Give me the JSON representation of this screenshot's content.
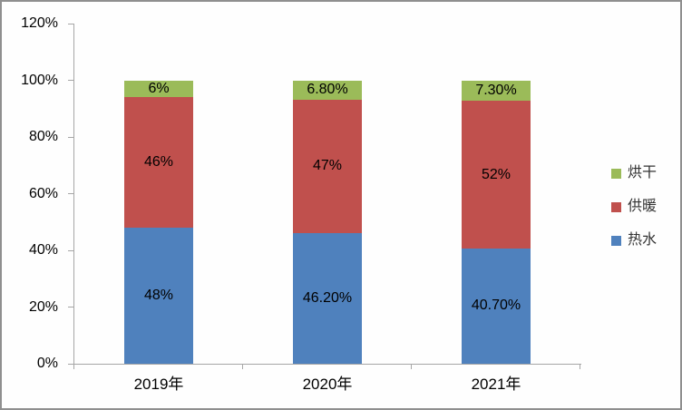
{
  "window": {
    "background": "#fefefe",
    "border_color": "#8f8f8f"
  },
  "chart_data": {
    "type": "bar",
    "subtype": "stacked-100-percent",
    "title": "",
    "categories": [
      "2019年",
      "2020年",
      "2021年"
    ],
    "series": [
      {
        "id": "hot-water",
        "name": "热水",
        "color": "#4f81bd",
        "values": [
          48,
          46.2,
          40.7
        ],
        "labels": [
          "48%",
          "46.20%",
          "40.70%"
        ]
      },
      {
        "id": "heating",
        "name": "供暖",
        "color": "#c0504d",
        "values": [
          46,
          47,
          52
        ],
        "labels": [
          "46%",
          "47%",
          "52%"
        ]
      },
      {
        "id": "drying",
        "name": "烘干",
        "color": "#9bbb59",
        "values": [
          6,
          6.8,
          7.3
        ],
        "labels": [
          "6%",
          "6.80%",
          "7.30%"
        ]
      }
    ],
    "y_axis": {
      "min": 0,
      "max": 120,
      "step": 20,
      "tick_labels": [
        "0%",
        "20%",
        "40%",
        "60%",
        "80%",
        "100%",
        "120%"
      ],
      "unit": "%"
    },
    "x_axis": {
      "labels": [
        "2019年",
        "2020年",
        "2021年"
      ]
    },
    "legend": {
      "position": "right",
      "items": [
        "烘干",
        "供暖",
        "热水"
      ]
    },
    "grid": false,
    "axis_color": "#a6a6a6",
    "label_color": "#000000"
  }
}
